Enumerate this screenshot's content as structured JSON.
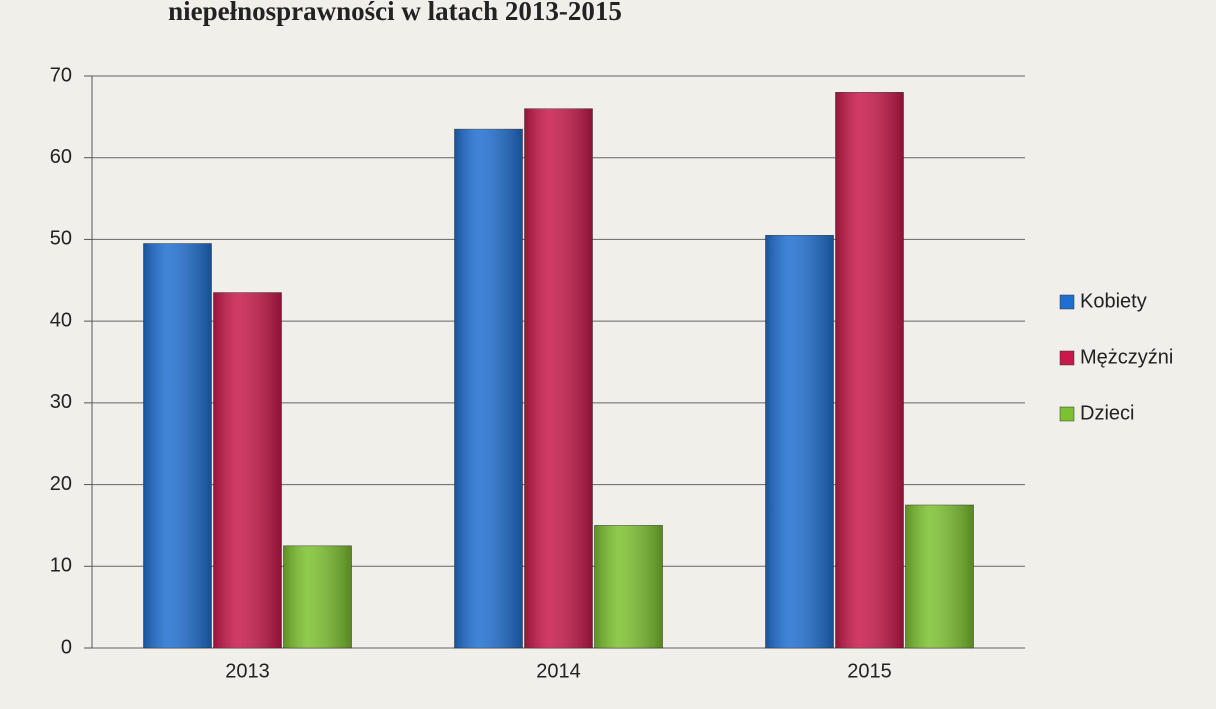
{
  "chart_data": {
    "type": "bar",
    "title": "niepełnosprawności w latach 2013-2015",
    "categories": [
      "2013",
      "2014",
      "2015"
    ],
    "series": [
      {
        "name": "Kobiety",
        "color": "#1f6fd1",
        "values": [
          49.5,
          63.5,
          50.5
        ]
      },
      {
        "name": "Mężczyźni",
        "color": "#c8194a",
        "values": [
          43.5,
          66,
          68
        ]
      },
      {
        "name": "Dzieci",
        "color": "#7cc12f",
        "values": [
          12.5,
          15,
          17.5
        ]
      }
    ],
    "ylim": [
      0,
      70
    ],
    "yticks": [
      0,
      10,
      20,
      30,
      40,
      50,
      60,
      70
    ],
    "grid": true,
    "legend": "right"
  }
}
